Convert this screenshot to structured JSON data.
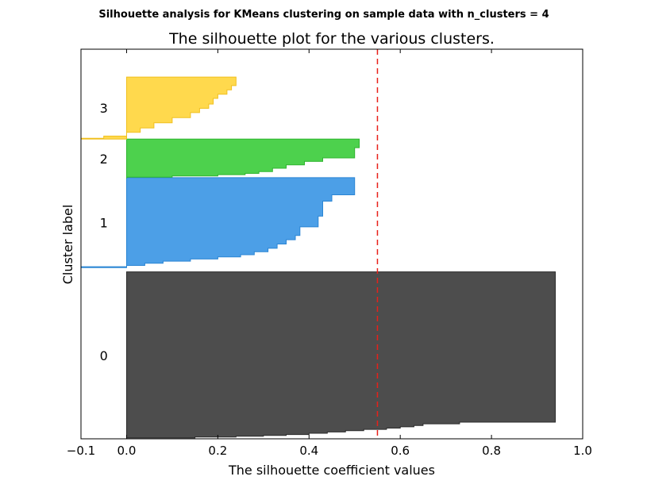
{
  "chart_data": {
    "type": "area",
    "suptitle": "Silhouette analysis for KMeans clustering on sample data with n_clusters = 4",
    "title": "The silhouette plot for the various clusters.",
    "xlabel": "The silhouette coefficient values",
    "ylabel": "Cluster label",
    "xlim": [
      -0.1,
      1.0
    ],
    "ylim": [
      0,
      910
    ],
    "xticks": [
      -0.1,
      0.0,
      0.2,
      0.4,
      0.6,
      0.8,
      1.0
    ],
    "xtick_labels": [
      "−0.1",
      "0.0",
      "0.2",
      "0.4",
      "0.6",
      "0.8",
      "1.0"
    ],
    "average_silhouette": 0.55,
    "grid": false,
    "clusters": [
      {
        "label": "0",
        "color": "#4d4d4d",
        "edge": "#2b2b2b",
        "y_lower": 0,
        "y_upper": 390,
        "profile": [
          [
            0,
            0.0
          ],
          [
            2,
            0.15
          ],
          [
            4,
            0.24
          ],
          [
            6,
            0.3
          ],
          [
            8,
            0.35
          ],
          [
            10,
            0.4
          ],
          [
            13,
            0.44
          ],
          [
            16,
            0.48
          ],
          [
            19,
            0.52
          ],
          [
            22,
            0.57
          ],
          [
            25,
            0.6
          ],
          [
            28,
            0.63
          ],
          [
            31,
            0.65
          ],
          [
            35,
            0.73
          ],
          [
            39,
            0.94
          ],
          [
            390,
            0.94
          ]
        ]
      },
      {
        "label": "1",
        "color": "#4c9fe7",
        "edge": "#2a85d4",
        "y_lower": 400,
        "y_upper": 610,
        "profile": [
          [
            400,
            -0.1
          ],
          [
            402,
            0.0
          ],
          [
            405,
            0.04
          ],
          [
            410,
            0.08
          ],
          [
            415,
            0.14
          ],
          [
            420,
            0.2
          ],
          [
            425,
            0.25
          ],
          [
            430,
            0.28
          ],
          [
            437,
            0.31
          ],
          [
            445,
            0.33
          ],
          [
            455,
            0.35
          ],
          [
            465,
            0.37
          ],
          [
            475,
            0.38
          ],
          [
            495,
            0.42
          ],
          [
            520,
            0.43
          ],
          [
            555,
            0.45
          ],
          [
            570,
            0.5
          ],
          [
            610,
            0.5
          ]
        ]
      },
      {
        "label": "2",
        "color": "#4dd14d",
        "edge": "#2fb52f",
        "y_lower": 608,
        "y_upper": 700,
        "profile": [
          [
            608,
            0.0
          ],
          [
            611,
            0.1
          ],
          [
            614,
            0.2
          ],
          [
            617,
            0.26
          ],
          [
            620,
            0.29
          ],
          [
            624,
            0.32
          ],
          [
            632,
            0.35
          ],
          [
            640,
            0.39
          ],
          [
            648,
            0.43
          ],
          [
            656,
            0.5
          ],
          [
            680,
            0.51
          ],
          [
            700,
            0.51
          ]
        ]
      },
      {
        "label": "3",
        "color": "#ffd94d",
        "edge": "#f0c020",
        "y_lower": 700,
        "y_upper": 845,
        "profile": [
          [
            700,
            -0.1
          ],
          [
            702,
            -0.05
          ],
          [
            707,
            0.0
          ],
          [
            716,
            0.03
          ],
          [
            726,
            0.06
          ],
          [
            738,
            0.1
          ],
          [
            750,
            0.14
          ],
          [
            762,
            0.16
          ],
          [
            772,
            0.18
          ],
          [
            782,
            0.19
          ],
          [
            795,
            0.2
          ],
          [
            805,
            0.22
          ],
          [
            815,
            0.23
          ],
          [
            825,
            0.24
          ],
          [
            835,
            0.24
          ],
          [
            845,
            0.22
          ]
        ]
      }
    ]
  }
}
